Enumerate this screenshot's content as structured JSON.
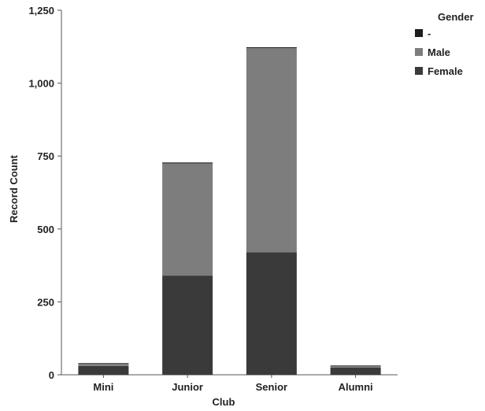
{
  "chart_data": {
    "type": "bar",
    "stacked": true,
    "categories": [
      "Mini",
      "Junior",
      "Senior",
      "Alumni"
    ],
    "series": [
      {
        "name": "Female",
        "values": [
          30,
          340,
          420,
          25
        ]
      },
      {
        "name": "Male",
        "values": [
          8,
          385,
          700,
          5
        ]
      },
      {
        "name": "-",
        "values": [
          2,
          3,
          3,
          2
        ]
      }
    ],
    "xlabel": "Club",
    "ylabel": "Record Count",
    "ylim": [
      0,
      1250
    ],
    "yticks": [
      0,
      250,
      500,
      750,
      1000,
      1250
    ],
    "ytick_labels": [
      "0",
      "250",
      "500",
      "750",
      "1,000",
      "1,250"
    ],
    "legend": {
      "title": "Gender",
      "placement": "top-right",
      "entries": [
        "-",
        "Male",
        "Female"
      ]
    },
    "grid": false
  },
  "colors": {
    "female": "#3a3a3a",
    "male": "#7d7d7d",
    "dash": "#1e1e1e",
    "axis": "#555555"
  }
}
